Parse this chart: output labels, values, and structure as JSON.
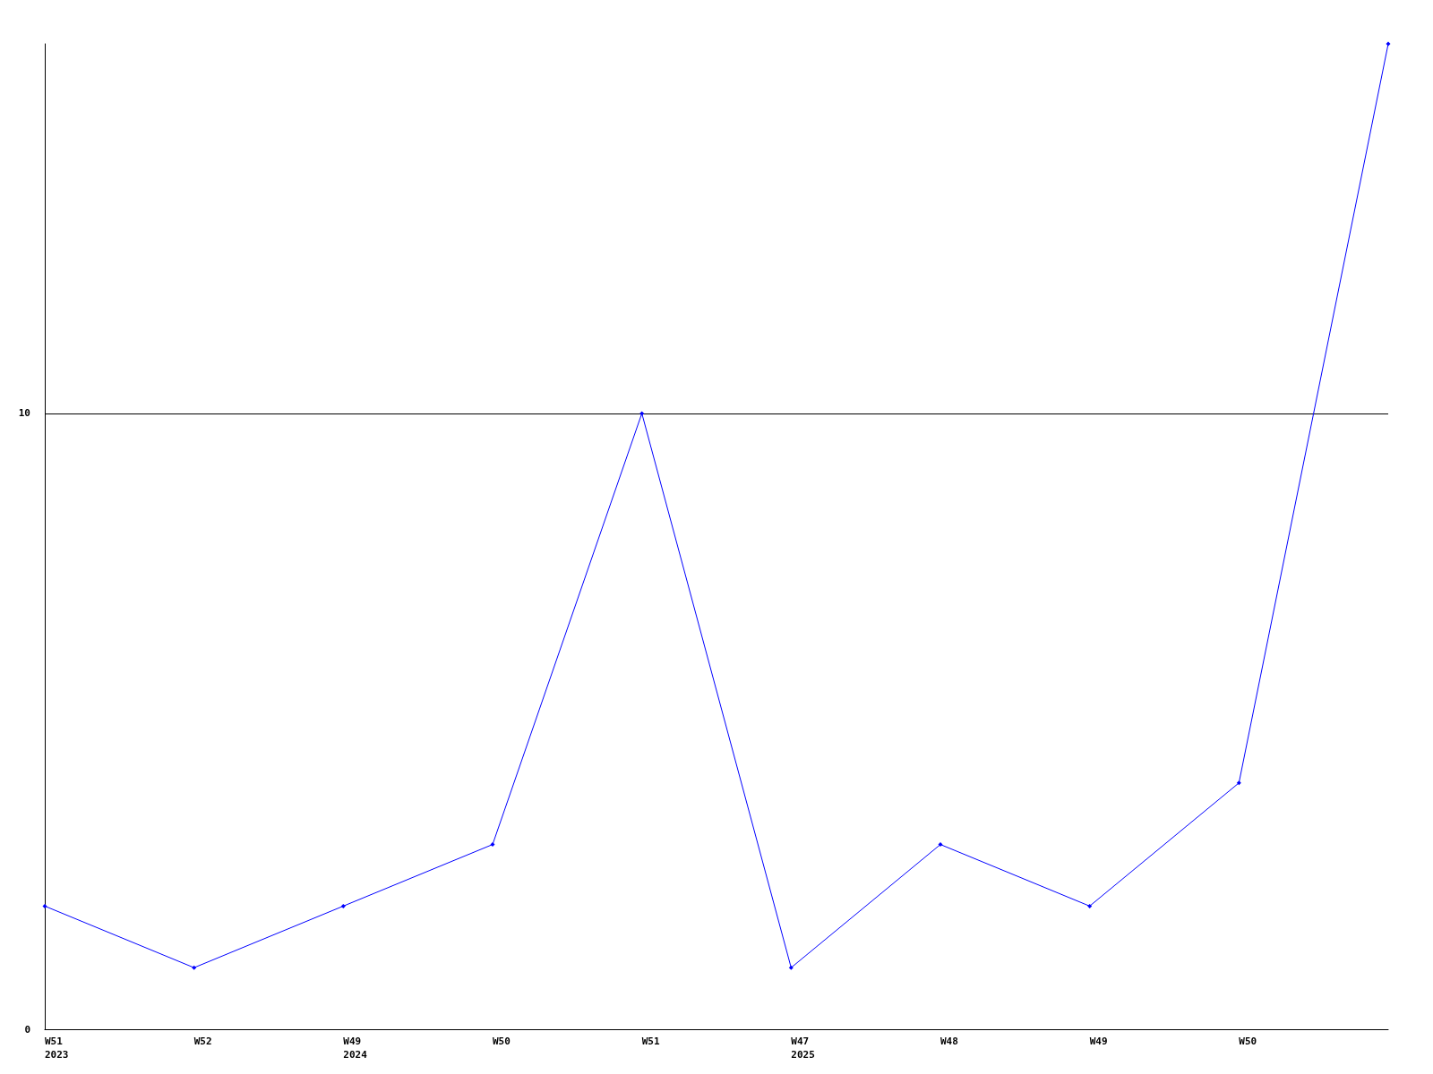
{
  "chart_data": {
    "type": "line",
    "categories": [
      "W51\n2023",
      "W52",
      "W49\n2024",
      "W50",
      "W51",
      "W47\n2025",
      "W48",
      "W49",
      "W50",
      null
    ],
    "series": [
      {
        "color": "#0000ff",
        "values": [
          2,
          1,
          2,
          3,
          10,
          1,
          3,
          2,
          4,
          16
        ]
      }
    ],
    "ylim": [
      0,
      16
    ],
    "yticks": [
      0,
      10
    ],
    "grid": "y",
    "marker": "diamond",
    "line_style": "solid"
  }
}
